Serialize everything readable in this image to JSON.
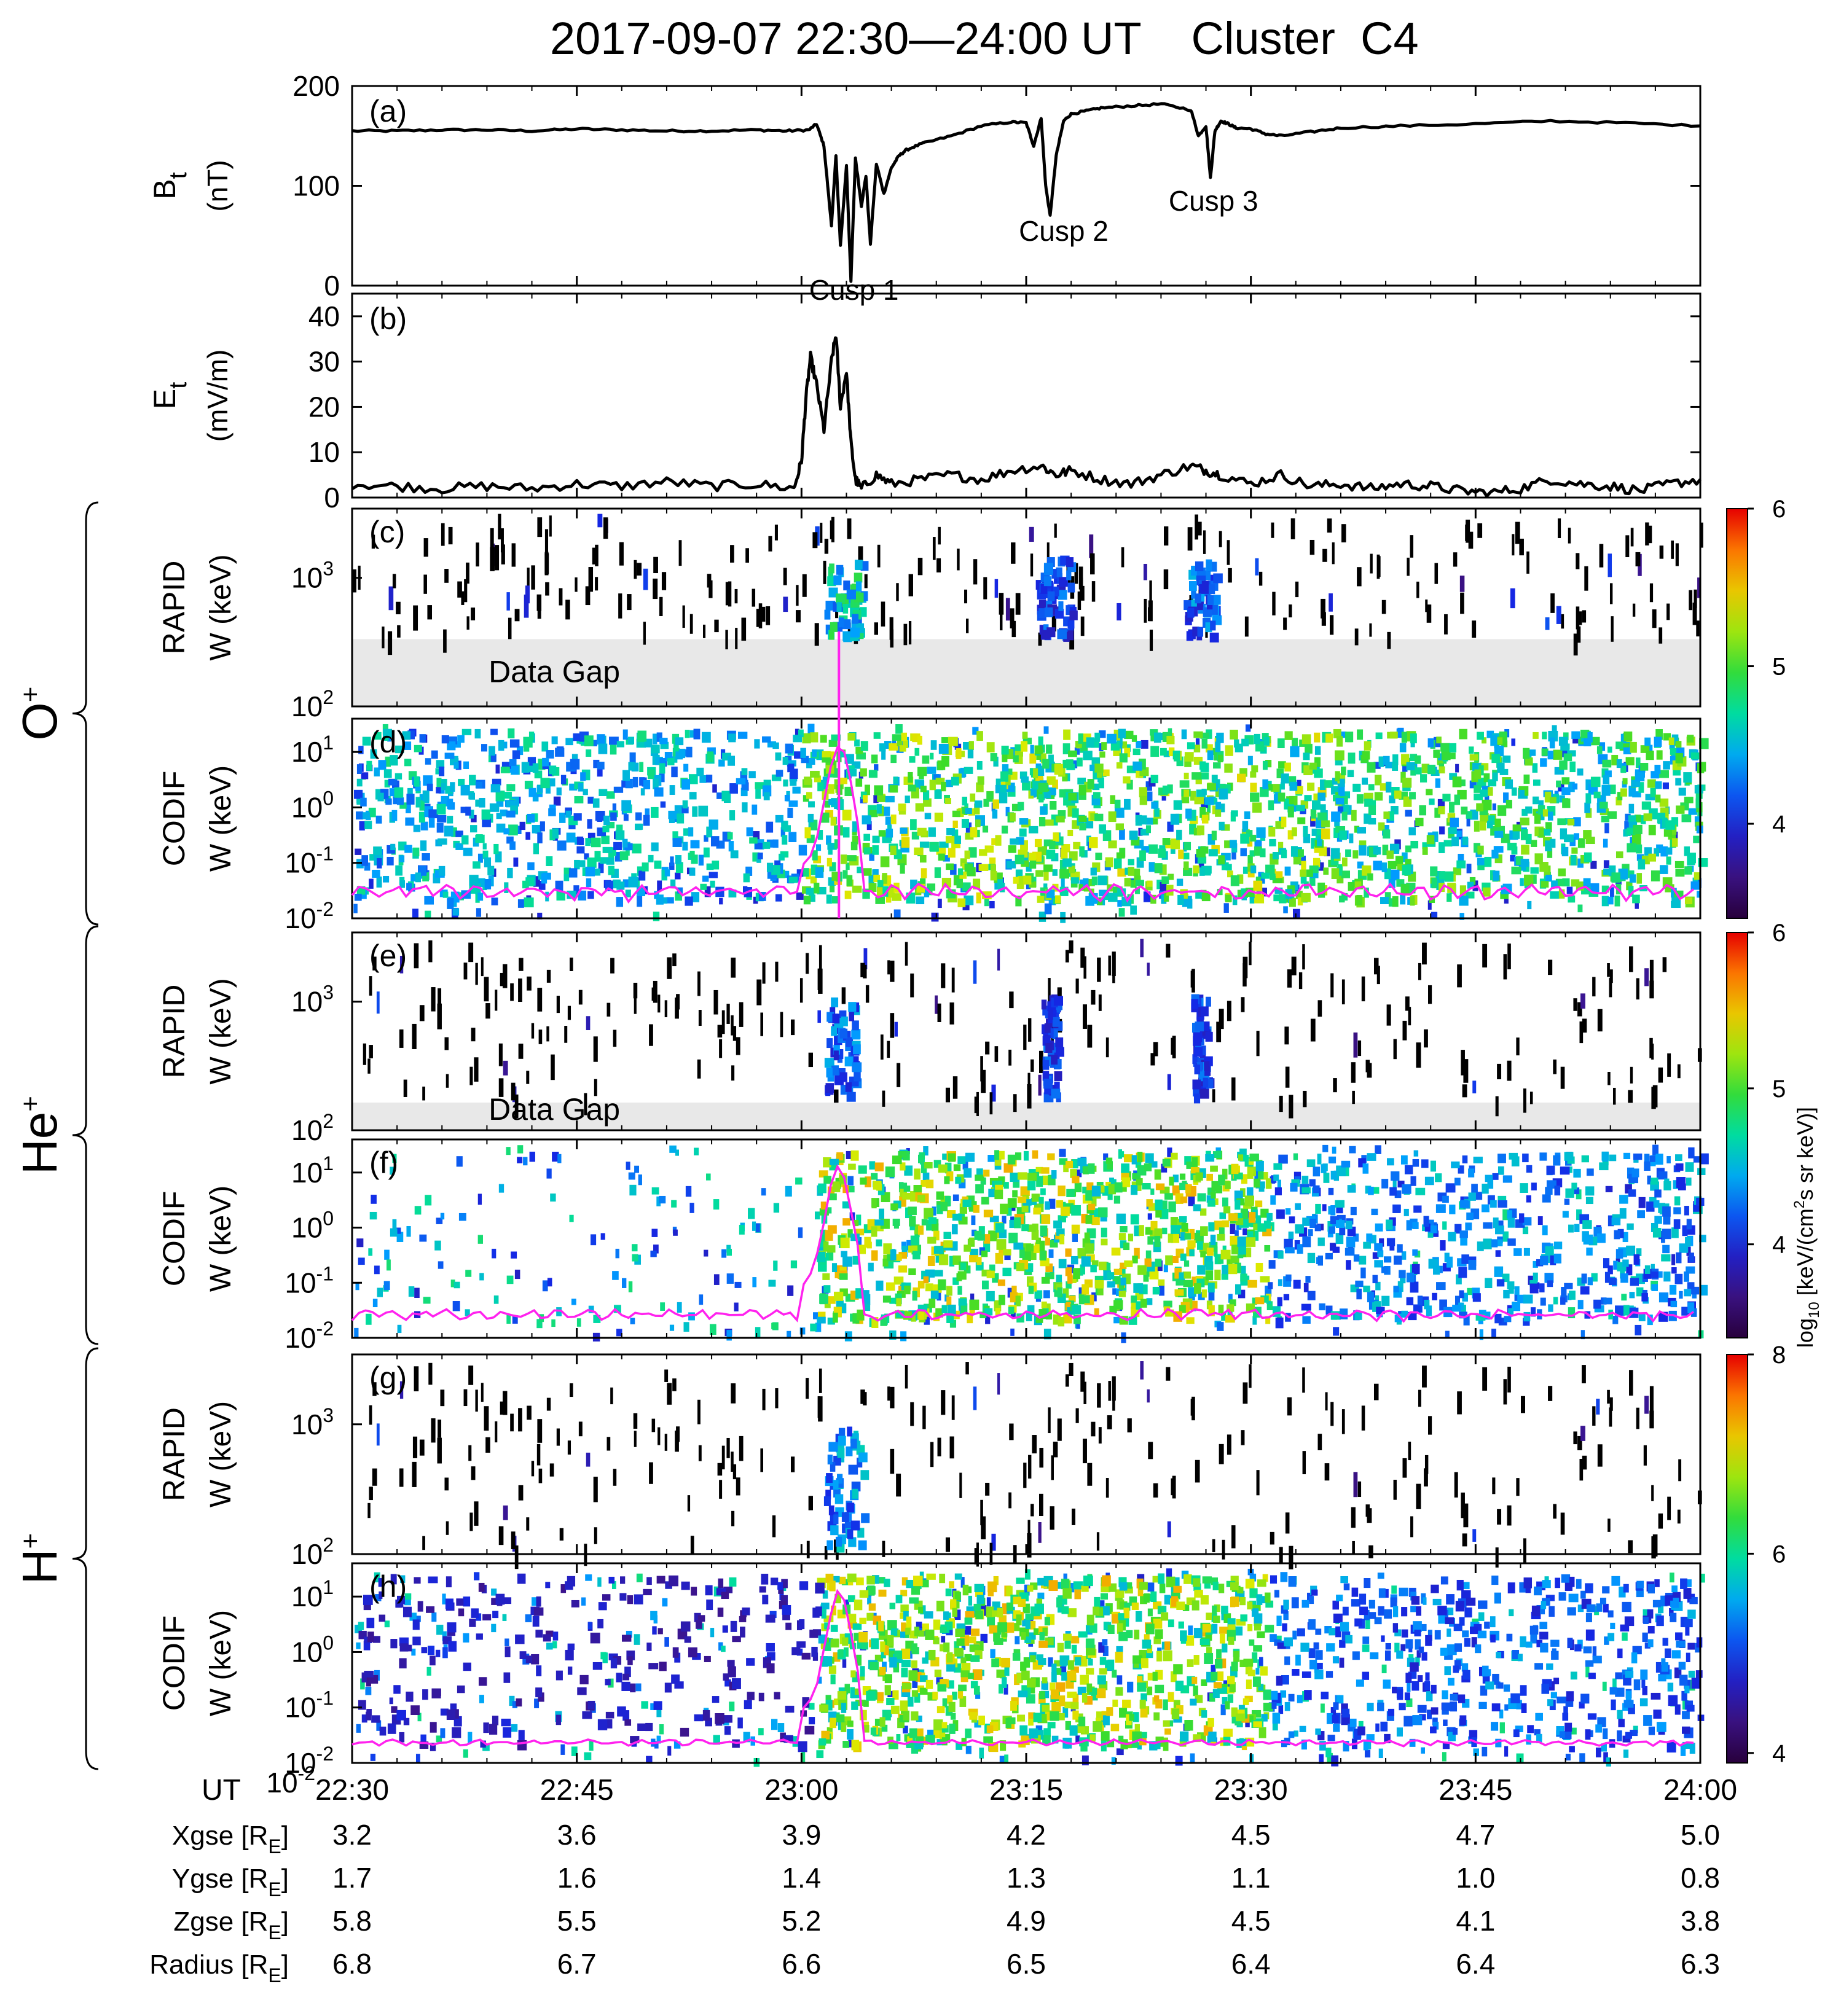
{
  "title": "2017-09-07 22:30—24:00 UT    Cluster  C4",
  "chart_data": {
    "type": "multi-panel time series / spectrogram",
    "time_axis": {
      "label": "UT",
      "range_minutes": [
        0,
        90
      ],
      "ticks": [
        {
          "t": 0,
          "label": "22:30"
        },
        {
          "t": 15,
          "label": "22:45"
        },
        {
          "t": 30,
          "label": "23:00"
        },
        {
          "t": 45,
          "label": "23:15"
        },
        {
          "t": 60,
          "label": "23:30"
        },
        {
          "t": 75,
          "label": "23:45"
        },
        {
          "t": 90,
          "label": "24:00"
        }
      ]
    },
    "panels": [
      {
        "id": "a",
        "letter": "(a)",
        "type": "line",
        "ylabel_main": "B",
        "ylabel_sub": "t",
        "ylabel_unit": "(nT)",
        "ylim": [
          0,
          200
        ],
        "yticks": [
          0,
          100,
          200
        ],
        "annotations": [
          {
            "text": "Cusp 1",
            "t": 33.5,
            "y": -14
          },
          {
            "text": "Cusp 2",
            "t": 47.5,
            "y": 45
          },
          {
            "text": "Cusp 3",
            "t": 57.5,
            "y": 75
          }
        ],
        "series": {
          "t": [
            0,
            3,
            6,
            9,
            12,
            15,
            18,
            21,
            24,
            27,
            29,
            30.5,
            31,
            31.5,
            32,
            32.3,
            32.6,
            33,
            33.3,
            33.6,
            34,
            34.3,
            34.6,
            35,
            35.5,
            36,
            36.5,
            37,
            38,
            40,
            42,
            44,
            45,
            45.5,
            46,
            46.3,
            46.6,
            47,
            47.5,
            48,
            49,
            50,
            52,
            54,
            56,
            56.5,
            57,
            57.3,
            57.6,
            58,
            58.5,
            59,
            60,
            61,
            62,
            64,
            66,
            70,
            75,
            80,
            85,
            90
          ],
          "y": [
            155,
            155,
            156,
            156,
            155,
            157,
            156,
            155,
            155,
            156,
            155,
            156,
            162,
            140,
            60,
            130,
            40,
            120,
            5,
            128,
            80,
            110,
            42,
            122,
            92,
            118,
            130,
            136,
            142,
            150,
            160,
            164,
            163,
            140,
            168,
            100,
            70,
            130,
            165,
            172,
            175,
            178,
            180,
            182,
            176,
            150,
            160,
            108,
            155,
            165,
            162,
            158,
            157,
            152,
            150,
            154,
            158,
            160,
            162,
            165,
            163,
            160
          ]
        }
      },
      {
        "id": "b",
        "letter": "(b)",
        "type": "line",
        "ylabel_main": "E",
        "ylabel_sub": "t",
        "ylabel_unit": "(mV/m)",
        "ylim": [
          0,
          45
        ],
        "yticks": [
          0,
          10,
          20,
          30,
          40
        ],
        "series": {
          "t": [
            0,
            3,
            6,
            9,
            12,
            15,
            18,
            21,
            24,
            27,
            29.5,
            30,
            30.3,
            30.6,
            31,
            31.5,
            32,
            32.3,
            32.6,
            33,
            33.3,
            33.6,
            34,
            35,
            36,
            38,
            40,
            42,
            44,
            46,
            47,
            48,
            50,
            52,
            54,
            56,
            57,
            58,
            60,
            62,
            64,
            66,
            68,
            70,
            72,
            74,
            76,
            78,
            80,
            82,
            84,
            86,
            88,
            90
          ],
          "y": [
            3,
            2.5,
            2,
            2.5,
            2,
            3,
            2.5,
            3.5,
            2.5,
            3,
            2,
            8,
            22,
            31,
            25,
            15,
            30,
            36,
            20,
            28,
            12,
            4,
            2,
            5,
            3,
            4,
            5,
            4,
            6,
            7,
            5,
            6,
            4,
            3,
            5,
            7,
            6,
            5,
            3,
            5,
            2.5,
            3,
            2,
            3,
            2.5,
            1.5,
            1,
            2,
            4,
            3,
            2.5,
            1.5,
            3,
            4
          ]
        }
      },
      {
        "id": "c",
        "letter": "(c)",
        "type": "spectrogram",
        "instrument": "RAPID",
        "unit": "W (keV)",
        "ymin": "10",
        "ymin_exp": "2",
        "ytick": "10",
        "ytick_exp": "3",
        "gap_label": "Data Gap",
        "blobs": [
          {
            "t": [
              31.5,
              34
            ],
            "level": 0.5
          },
          {
            "t": [
              45.5,
              48
            ],
            "level": 0.3
          },
          {
            "t": [
              55.5,
              57.5
            ],
            "level": 0.35
          }
        ]
      },
      {
        "id": "d",
        "letter": "(d)",
        "type": "spectrogram",
        "instrument": "CODIF",
        "unit": "W (keV)",
        "ylim_log10": [
          -2,
          1.6
        ],
        "yticks_log10": [
          -2,
          -1,
          0,
          1
        ],
        "blobs": [
          {
            "t": [
              30,
              65
            ],
            "level": 0.65
          },
          {
            "t": [
              0,
              30
            ],
            "level": 0.45
          },
          {
            "t": [
              65,
              90
            ],
            "level": 0.6
          }
        ]
      },
      {
        "id": "e",
        "letter": "(e)",
        "type": "spectrogram",
        "instrument": "RAPID",
        "unit": "W (keV)",
        "ymin": "10",
        "ymin_exp": "2",
        "ytick": "10",
        "ytick_exp": "3",
        "gap_label": "Data Gap",
        "blobs": [
          {
            "t": [
              31.5,
              33.5
            ],
            "level": 0.35
          },
          {
            "t": [
              46,
              47
            ],
            "level": 0.3
          },
          {
            "t": [
              56,
              57
            ],
            "level": 0.3
          }
        ]
      },
      {
        "id": "f",
        "letter": "(f)",
        "type": "spectrogram",
        "instrument": "CODIF",
        "unit": "W (keV)",
        "ylim_log10": [
          -2,
          1.6
        ],
        "yticks_log10": [
          -2,
          -1,
          0,
          1
        ],
        "blobs": [
          {
            "t": [
              31,
              61
            ],
            "level": 0.7
          },
          {
            "t": [
              61,
              90
            ],
            "level": 0.4
          }
        ]
      },
      {
        "id": "g",
        "letter": "(g)",
        "type": "spectrogram",
        "instrument": "RAPID",
        "unit": "W (keV)",
        "ymin": "10",
        "ymin_exp": "2",
        "ytick": "10",
        "ytick_exp": "3",
        "blobs": [
          {
            "t": [
              31.5,
              34
            ],
            "level": 0.4
          }
        ]
      },
      {
        "id": "h",
        "letter": "(h)",
        "type": "spectrogram",
        "instrument": "CODIF",
        "unit": "W (keV)",
        "ylim_log10": [
          -2,
          1.6
        ],
        "yticks_log10": [
          -2,
          -1,
          0,
          1
        ],
        "blobs": [
          {
            "t": [
              31,
              61
            ],
            "level": 0.7
          },
          {
            "t": [
              0,
              31
            ],
            "level": 0.2
          },
          {
            "t": [
              61,
              90
            ],
            "level": 0.35
          }
        ]
      }
    ],
    "species": [
      {
        "label": "O",
        "sup": "+",
        "panels": [
          "c",
          "d"
        ]
      },
      {
        "label": "He",
        "sup": "+",
        "panels": [
          "e",
          "f"
        ]
      },
      {
        "label": "H",
        "sup": "+",
        "panels": [
          "g",
          "h"
        ]
      }
    ],
    "colorbars": [
      {
        "panels": [
          "c",
          "d"
        ],
        "ticks": [
          {
            "v": 4,
            "label": "4"
          },
          {
            "v": 5,
            "label": "5"
          },
          {
            "v": 6,
            "label": "6"
          }
        ],
        "range": [
          3.4,
          6.0
        ]
      },
      {
        "panels": [
          "e",
          "f"
        ],
        "ticks": [
          {
            "v": 4,
            "label": "4"
          },
          {
            "v": 5,
            "label": "5"
          },
          {
            "v": 6,
            "label": "6"
          }
        ],
        "range": [
          3.4,
          6.0
        ]
      },
      {
        "panels": [
          "g",
          "h"
        ],
        "ticks": [
          {
            "v": 4,
            "label": "4"
          },
          {
            "v": 6,
            "label": "6"
          },
          {
            "v": 8,
            "label": "8"
          }
        ],
        "range": [
          3.9,
          8.0
        ]
      }
    ],
    "colorbar_label": {
      "prefix": "log",
      "sub": "10",
      "unit_a": " [keV/(cm",
      "unit_sup": "2",
      "unit_b": "s sr keV)]"
    },
    "position_table": {
      "rows": [
        {
          "name": "Xgse [R",
          "sub": "E",
          "close": "]",
          "values": [
            "3.2",
            "3.6",
            "3.9",
            "4.2",
            "4.5",
            "4.7",
            "5.0"
          ]
        },
        {
          "name": "Ygse [R",
          "sub": "E",
          "close": "]",
          "values": [
            "1.7",
            "1.6",
            "1.4",
            "1.3",
            "1.1",
            "1.0",
            "0.8"
          ]
        },
        {
          "name": "Zgse [R",
          "sub": "E",
          "close": "]",
          "values": [
            "5.8",
            "5.5",
            "5.2",
            "4.9",
            "4.5",
            "4.1",
            "3.8"
          ]
        },
        {
          "name": "Radius [R",
          "sub": "E",
          "close": "]",
          "values": [
            "6.8",
            "6.7",
            "6.6",
            "6.5",
            "6.4",
            "6.4",
            "6.3"
          ]
        }
      ]
    }
  }
}
